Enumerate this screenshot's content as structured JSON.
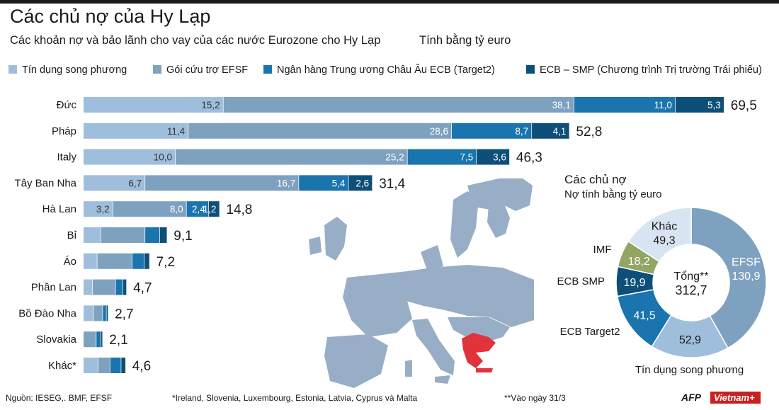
{
  "header": {
    "title": "Các chủ nợ của Hy Lạp",
    "subtitle": "Các khoản nợ và bảo lãnh cho vay của các nước Eurozone cho Hy Lạp",
    "unit": "Tính bằng tỷ euro"
  },
  "colors": {
    "bilateral": "#9ebedc",
    "efsf": "#7fa1c0",
    "target2": "#1a74ad",
    "smp": "#0e4f79",
    "other": "#d8e4f1",
    "imf": "#91a565",
    "greece": "#e0333a",
    "europe": "#98aec6"
  },
  "chart_data": [
    {
      "type": "bar",
      "orientation": "horizontal",
      "stacked": true,
      "title": "Các khoản nợ và bảo lãnh cho vay của các nước Eurozone cho Hy Lạp",
      "unit": "Tính bằng tỷ euro",
      "categories": [
        "Đức",
        "Pháp",
        "Italy",
        "Tây Ban Nha",
        "Hà Lan",
        "Bỉ",
        "Áo",
        "Phần Lan",
        "Bồ Đào Nha",
        "Slovakia",
        "Khác*"
      ],
      "series": [
        {
          "name": "Tín dụng song phương",
          "values": [
            15.2,
            11.4,
            10.0,
            6.7,
            3.2,
            1.9,
            1.5,
            1.0,
            1.1,
            0.0,
            1.6
          ],
          "labels": [
            "15,2",
            "11,4",
            "10,0",
            "6,7",
            "3,2",
            "",
            "",
            "",
            "",
            "",
            ""
          ]
        },
        {
          "name": "Gói cứu trợ EFSF",
          "values": [
            38.1,
            28.6,
            25.2,
            16.7,
            8.0,
            4.8,
            3.8,
            2.5,
            1.0,
            1.4,
            1.3
          ],
          "labels": [
            "38,1",
            "28,6",
            "25,2",
            "16,7",
            "8,0",
            "",
            "",
            "",
            "",
            "",
            ""
          ]
        },
        {
          "name": "Ngân hàng Trung ương Châu Âu ECB  (Target2)",
          "values": [
            11.0,
            8.7,
            7.5,
            5.4,
            2.4,
            1.6,
            1.3,
            0.8,
            0.4,
            0.5,
            1.2
          ],
          "labels": [
            "11,0",
            "8,7",
            "7,5",
            "5,4",
            "2,4",
            "",
            "",
            "",
            "",
            "",
            ""
          ]
        },
        {
          "name": "ECB – SMP (Chương trình Trị trường Trái phiếu)",
          "values": [
            5.3,
            4.1,
            3.6,
            2.6,
            1.2,
            0.8,
            0.6,
            0.4,
            0.2,
            0.2,
            0.5
          ],
          "labels": [
            "5,3",
            "4,1",
            "3,6",
            "2,6",
            "1,2",
            "",
            "",
            "",
            "",
            "",
            ""
          ]
        }
      ],
      "totals": [
        "69,5",
        "52,8",
        "46,3",
        "31,4",
        "14,8",
        "9,1",
        "7,2",
        "4,7",
        "2,7",
        "2,1",
        "4,6"
      ]
    },
    {
      "type": "pie",
      "donut": true,
      "title": "Các chủ nợ",
      "subtitle": "Nợ tính bằng tỷ euro",
      "center_label": "Tổng**",
      "center_value": "312,7",
      "slices": [
        {
          "name": "EFSF",
          "value": 130.9,
          "label": "130,9",
          "color": "#7fa1c0"
        },
        {
          "name": "Tín dụng song phương",
          "value": 52.9,
          "label": "52,9",
          "color": "#9ebedc"
        },
        {
          "name": "ECB Target2",
          "value": 41.5,
          "label": "41,5",
          "color": "#1a74ad"
        },
        {
          "name": "ECB SMP",
          "value": 19.9,
          "label": "19,9",
          "color": "#0e4f79"
        },
        {
          "name": "IMF",
          "value": 18.2,
          "label": "18,2",
          "color": "#91a565"
        },
        {
          "name": "Khác",
          "value": 49.3,
          "label": "49,3",
          "color": "#d8e4f1"
        }
      ]
    }
  ],
  "footer": {
    "source": "Nguồn: IESEG,. BMF, EFSF",
    "note1": "*Ireland, Slovenia, Luxembourg, Estonia, Latvia, Cyprus và Malta",
    "note2": "**Vào ngày 31/3",
    "logo_afp": "AFP",
    "logo_vietnam": "Vietnam+"
  }
}
